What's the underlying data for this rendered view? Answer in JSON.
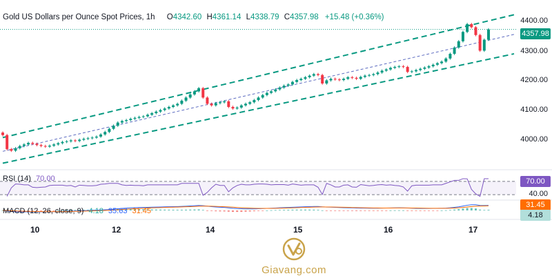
{
  "header": {
    "title": "Gold US Dollars per Ounce Spot Prices, 1h",
    "o_label": "O",
    "o_value": "4342.60",
    "h_label": "H",
    "h_value": "4361.14",
    "l_label": "L",
    "l_value": "4338.79",
    "c_label": "C",
    "c_value": "4357.98",
    "change": "+15.48 (+0.36%)"
  },
  "price_axis": {
    "ticks": [
      "4400.00",
      "4300.00",
      "4200.00",
      "4100.00",
      "4000.00"
    ],
    "last_price": "4357.98"
  },
  "rsi": {
    "label": "RSI (14)",
    "value": "70.00",
    "ticks": [
      "70.00",
      "40.00"
    ],
    "tag": "70.00",
    "upper_band": 70,
    "lower_band": 30
  },
  "macd": {
    "label": "MACD (12, 26, close, 9)",
    "hist": "4.18",
    "macd": "35.63",
    "signal": "31.45",
    "tag_signal": "31.45",
    "tag_hist": "4.18"
  },
  "time_axis": {
    "ticks": [
      "10",
      "12",
      "14",
      "15",
      "16",
      "17"
    ]
  },
  "logo": {
    "word": "Giavang.com"
  },
  "colors": {
    "up": "#089981",
    "down": "#f23645",
    "rsi": "#7e57c2",
    "channel": "#089981",
    "macd": "#2962ff",
    "signal": "#ff6d00"
  },
  "chart_data": {
    "type": "candlestick",
    "title": "Gold US Dollars per Ounce Spot Prices, 1h",
    "ylim": [
      3940,
      4430
    ],
    "x_ticks": [
      "10",
      "12",
      "14",
      "15",
      "16",
      "17"
    ],
    "series": [
      {
        "name": "close",
        "values": [
          4020,
          3975,
          3970,
          3978,
          3985,
          3990,
          3995,
          3992,
          3988,
          3985,
          3983,
          3986,
          3990,
          3994,
          3998,
          4000,
          4003,
          4001,
          4005,
          4008,
          4010,
          4012,
          4015,
          4022,
          4030,
          4040,
          4050,
          4060,
          4065,
          4068,
          4072,
          4075,
          4078,
          4080,
          4085,
          4090,
          4095,
          4100,
          4105,
          4110,
          4115,
          4120,
          4130,
          4140,
          4150,
          4160,
          4170,
          4140,
          4120,
          4115,
          4122,
          4125,
          4128,
          4110,
          4105,
          4108,
          4115,
          4120,
          4125,
          4132,
          4140,
          4148,
          4155,
          4160,
          4166,
          4172,
          4178,
          4182,
          4190,
          4196,
          4200,
          4205,
          4210,
          4215,
          4212,
          4185,
          4195,
          4200,
          4198,
          4196,
          4200,
          4205,
          4203,
          4200,
          4206,
          4210,
          4212,
          4215,
          4220,
          4226,
          4230,
          4235,
          4238,
          4240,
          4238,
          4222,
          4224,
          4228,
          4232,
          4236,
          4240,
          4245,
          4250,
          4255,
          4265,
          4280,
          4300,
          4320,
          4350,
          4375,
          4365,
          4340,
          4290,
          4325,
          4358
        ]
      }
    ]
  }
}
